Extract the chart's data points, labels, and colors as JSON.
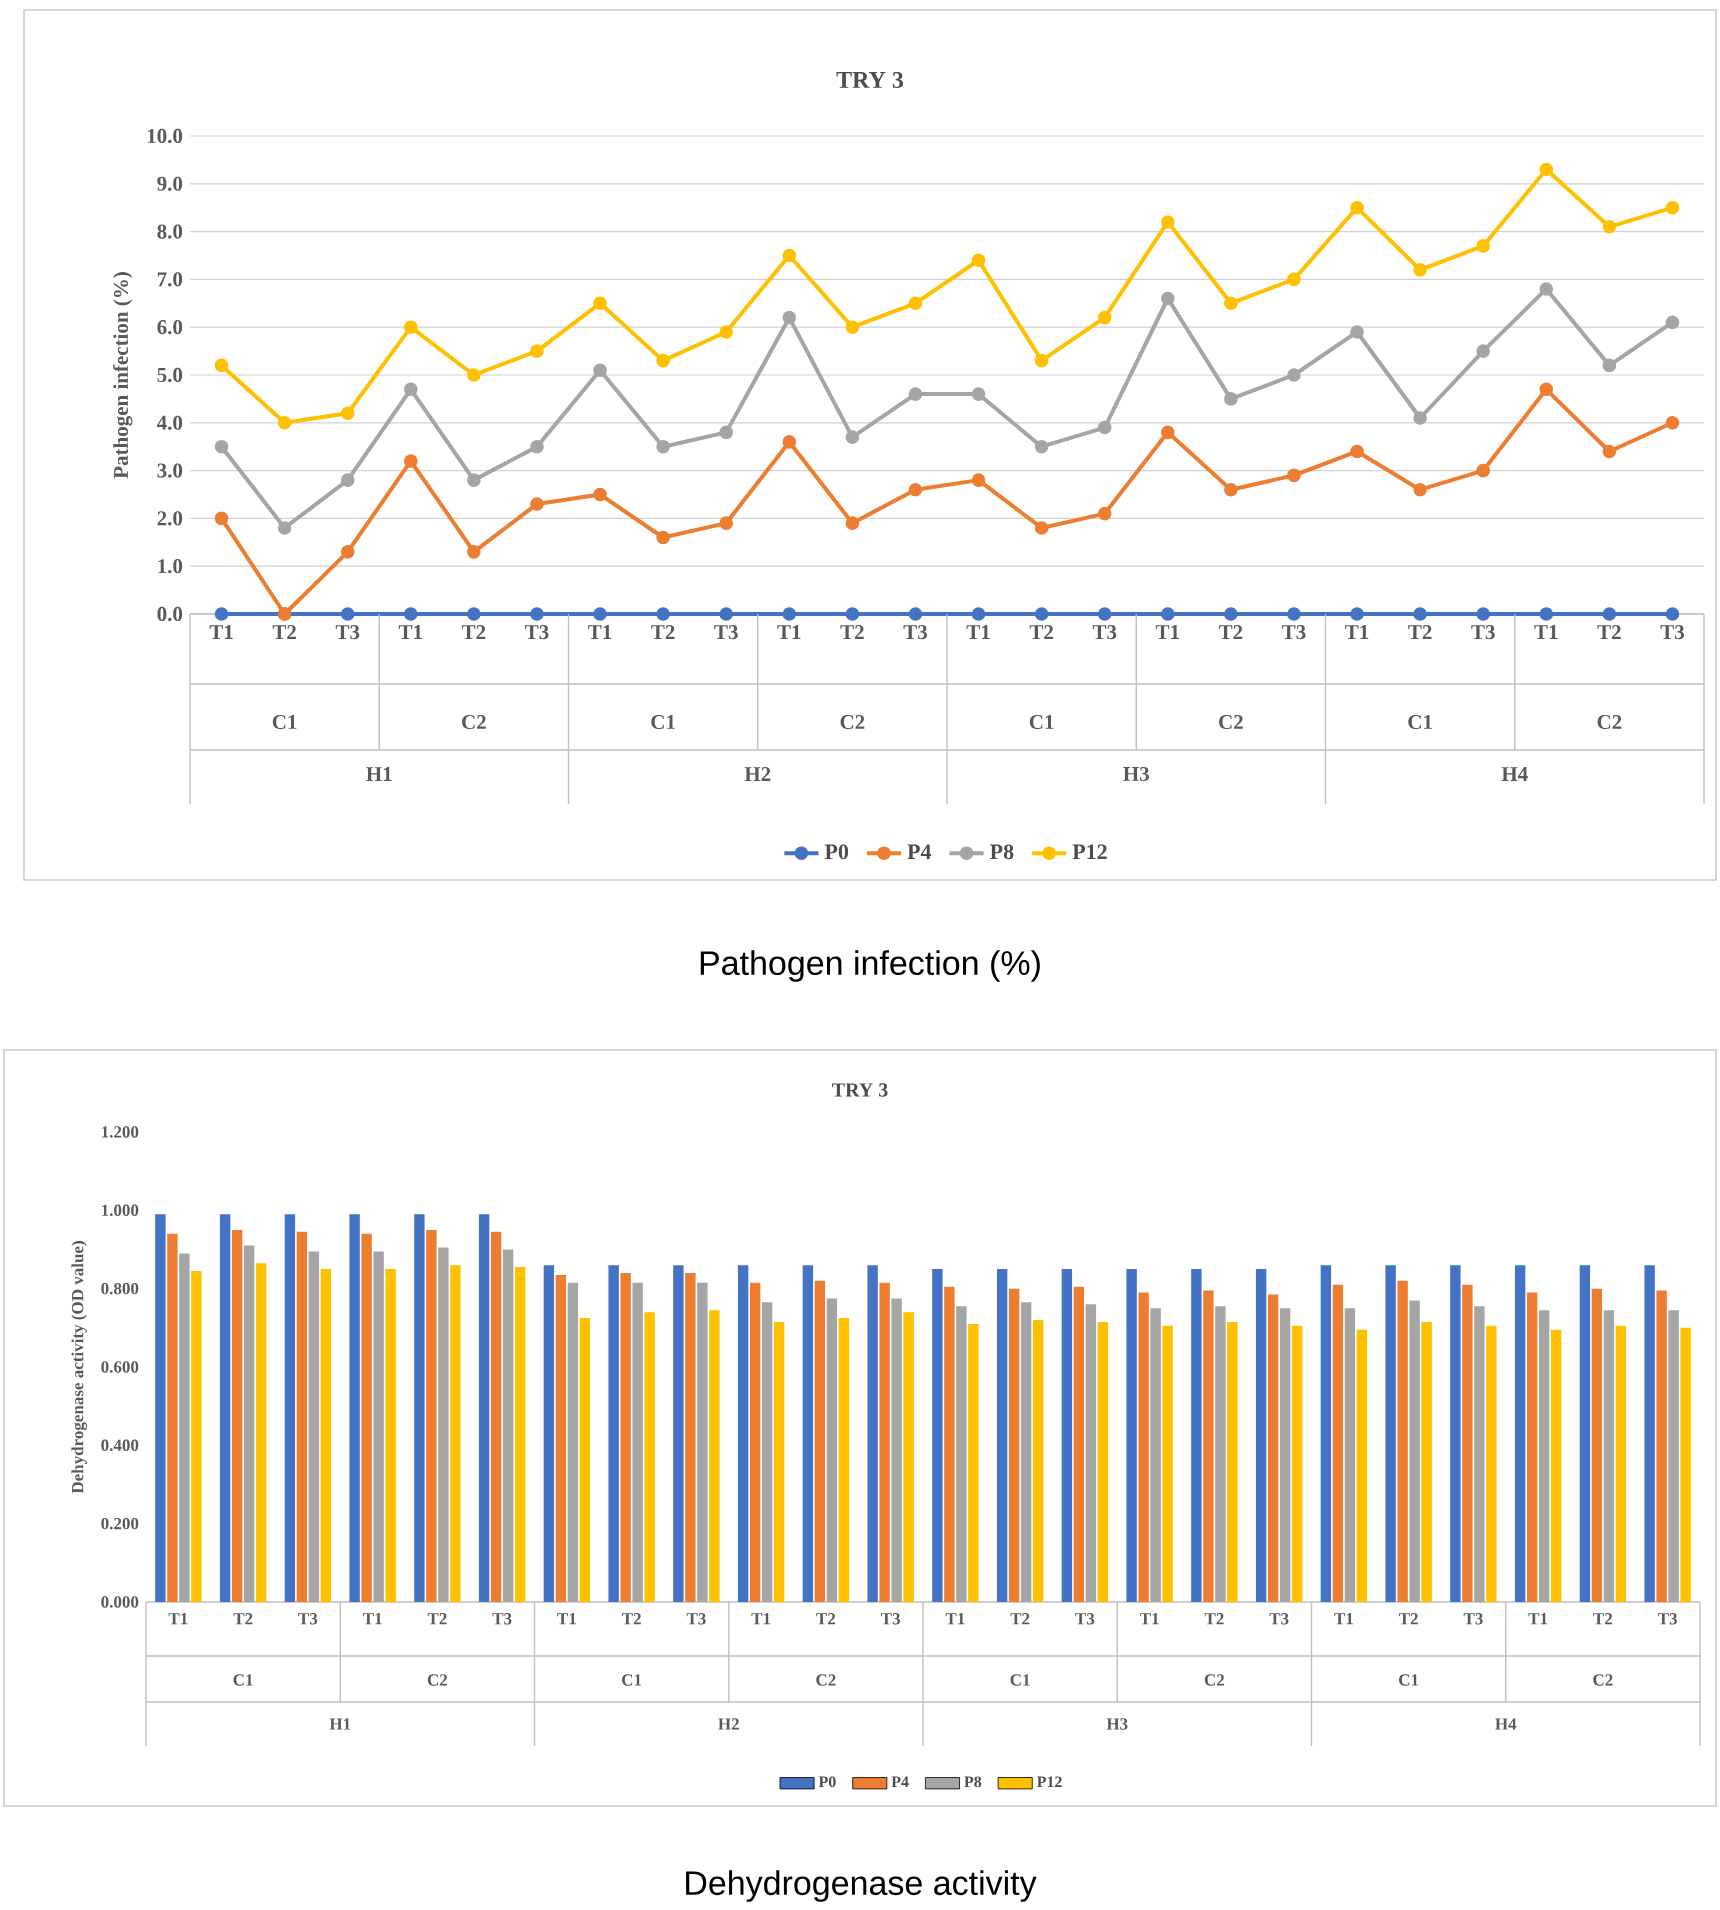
{
  "chart_data": [
    {
      "type": "line",
      "title": "TRY 3",
      "ylabel": "Pathogen infection (%)",
      "categories": [
        "T1",
        "T2",
        "T3",
        "T1",
        "T2",
        "T3",
        "T1",
        "T2",
        "T3",
        "T1",
        "T2",
        "T3",
        "T1",
        "T2",
        "T3",
        "T1",
        "T2",
        "T3",
        "T1",
        "T2",
        "T3",
        "T1",
        "T2",
        "T3"
      ],
      "series": [
        {
          "name": "P0",
          "color": "#4472c4",
          "values": [
            0,
            0,
            0,
            0,
            0,
            0,
            0,
            0,
            0,
            0,
            0,
            0,
            0,
            0,
            0,
            0,
            0,
            0,
            0,
            0,
            0,
            0,
            0,
            0
          ]
        },
        {
          "name": "P4",
          "color": "#ed7d31",
          "values": [
            2.0,
            0.0,
            1.3,
            3.2,
            1.3,
            2.3,
            2.5,
            1.6,
            1.9,
            3.6,
            1.9,
            2.6,
            2.8,
            1.8,
            2.1,
            3.8,
            2.6,
            2.9,
            3.4,
            2.6,
            3.0,
            4.7,
            3.4,
            4.0
          ]
        },
        {
          "name": "P8",
          "color": "#a5a5a5",
          "values": [
            3.5,
            1.8,
            2.8,
            4.7,
            2.8,
            3.5,
            5.1,
            3.5,
            3.8,
            6.2,
            3.7,
            4.6,
            4.6,
            3.5,
            3.9,
            6.6,
            4.5,
            5.0,
            5.9,
            4.1,
            5.5,
            6.8,
            5.2,
            6.1
          ]
        },
        {
          "name": "P12",
          "color": "#ffc000",
          "values": [
            5.2,
            4.0,
            4.2,
            6.0,
            5.0,
            5.5,
            6.5,
            5.3,
            5.9,
            7.5,
            6.0,
            6.5,
            7.4,
            5.3,
            6.2,
            8.2,
            6.5,
            7.0,
            8.5,
            7.2,
            7.7,
            9.3,
            8.1,
            8.5
          ]
        }
      ],
      "ylim": [
        0,
        10
      ],
      "yticks": [
        {
          "value": 0,
          "label": "0.0"
        },
        {
          "value": 1,
          "label": "1.0"
        },
        {
          "value": 2,
          "label": "2.0"
        },
        {
          "value": 3,
          "label": "3.0"
        },
        {
          "value": 4,
          "label": "4.0"
        },
        {
          "value": 5,
          "label": "5.0"
        },
        {
          "value": 6,
          "label": "6.0"
        },
        {
          "value": 7,
          "label": "7.0"
        },
        {
          "value": 8,
          "label": "8.0"
        },
        {
          "value": 9,
          "label": "9.0"
        },
        {
          "value": 10,
          "label": "10.0"
        }
      ],
      "grid": "y",
      "legend": "bottom",
      "marker": "circle",
      "annotations": [
        "C1",
        "C2",
        "C1",
        "C2",
        "C1",
        "C2",
        "C1",
        "C2",
        "H1",
        "H2",
        "H3",
        "H4",
        "Pathogen infection (%)"
      ]
    },
    {
      "type": "bar",
      "title": "TRY 3",
      "ylabel": "Dehydrogenase activity (OD value)",
      "categories": [
        "T1",
        "T2",
        "T3",
        "T1",
        "T2",
        "T3",
        "T1",
        "T2",
        "T3",
        "T1",
        "T2",
        "T3",
        "T1",
        "T2",
        "T3",
        "T1",
        "T2",
        "T3",
        "T1",
        "T2",
        "T3",
        "T1",
        "T2",
        "T3"
      ],
      "series": [
        {
          "name": "P0",
          "color": "#4472c4",
          "values": [
            0.99,
            0.99,
            0.99,
            0.99,
            0.99,
            0.99,
            0.86,
            0.86,
            0.86,
            0.86,
            0.86,
            0.86,
            0.85,
            0.85,
            0.85,
            0.85,
            0.85,
            0.85,
            0.86,
            0.86,
            0.86,
            0.86,
            0.86,
            0.86
          ]
        },
        {
          "name": "P4",
          "color": "#ed7d31",
          "values": [
            0.94,
            0.95,
            0.945,
            0.94,
            0.95,
            0.945,
            0.835,
            0.84,
            0.84,
            0.815,
            0.82,
            0.815,
            0.805,
            0.8,
            0.805,
            0.79,
            0.795,
            0.785,
            0.81,
            0.82,
            0.81,
            0.79,
            0.8,
            0.795
          ]
        },
        {
          "name": "P8",
          "color": "#a5a5a5",
          "values": [
            0.89,
            0.91,
            0.895,
            0.895,
            0.905,
            0.9,
            0.815,
            0.815,
            0.815,
            0.765,
            0.775,
            0.775,
            0.755,
            0.765,
            0.76,
            0.75,
            0.755,
            0.75,
            0.75,
            0.77,
            0.755,
            0.745,
            0.745,
            0.745
          ]
        },
        {
          "name": "P12",
          "color": "#ffc000",
          "values": [
            0.845,
            0.865,
            0.85,
            0.85,
            0.86,
            0.855,
            0.725,
            0.74,
            0.745,
            0.715,
            0.725,
            0.74,
            0.71,
            0.72,
            0.715,
            0.705,
            0.715,
            0.705,
            0.695,
            0.715,
            0.705,
            0.695,
            0.705,
            0.7
          ]
        }
      ],
      "ylim": [
        0,
        1.2
      ],
      "yticks": [
        {
          "value": 0,
          "label": "0.000"
        },
        {
          "value": 0.2,
          "label": "0.200"
        },
        {
          "value": 0.4,
          "label": "0.400"
        },
        {
          "value": 0.6,
          "label": "0.600"
        },
        {
          "value": 0.8,
          "label": "0.800"
        },
        {
          "value": 1.0,
          "label": "1.000"
        },
        {
          "value": 1.2,
          "label": "1.200"
        }
      ],
      "legend": "bottom",
      "annotations": [
        "C1",
        "C2",
        "C1",
        "C2",
        "C1",
        "C2",
        "C1",
        "C2",
        "H1",
        "H2",
        "H3",
        "H4",
        "Dehydrogenase activity"
      ]
    }
  ]
}
